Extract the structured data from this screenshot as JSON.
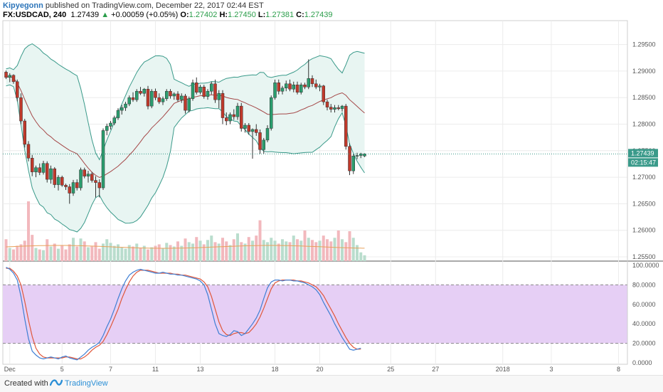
{
  "header": {
    "author": "Kipyegonn",
    "published": "published on TradingView.com, December 22, 2017 02:44 EST",
    "symbol": "FX:USDCAD, 240",
    "last": "1.27439",
    "change": "+0.00059 (+0.05%)",
    "o_label": "O:",
    "o": "1.27402",
    "h_label": "H:",
    "h": "1.27450",
    "l_label": "L:",
    "l": "1.27381",
    "c_label": "C:",
    "c": "1.27439"
  },
  "footer": {
    "created_with": "Created with",
    "brand": "TradingView"
  },
  "colors": {
    "up": "#2a9d6e",
    "down": "#c0392b",
    "band": "#3a9a8a",
    "band_fill": "#e8f5f2",
    "basis": "#a54848",
    "stoch_k": "#3f7fd4",
    "stoch_d": "#e0573a",
    "stoch_zone": "#e6cff5",
    "vol_up": "#b9ddcd",
    "vol_down": "#f2b8bd",
    "price_tag": "#3a9a8a"
  },
  "chart_data": [
    {
      "type": "candlestick",
      "title": "FX:USDCAD, 240",
      "overlays": [
        "Bollinger Bands",
        "Volume"
      ],
      "ylim": [
        1.2542,
        1.2995
      ],
      "y_ticks": [
        "1.29500",
        "1.29000",
        "1.28500",
        "1.28000",
        "1.27500",
        "1.27000",
        "1.26500",
        "1.26000",
        "1.25500"
      ],
      "y_tick_values": [
        1.295,
        1.29,
        1.285,
        1.28,
        1.275,
        1.27,
        1.265,
        1.26,
        1.255
      ],
      "last_price_label": "1.27439",
      "last_price": 1.27439,
      "countdown_label": "02:15:47",
      "x_ticks": [
        "Dec",
        "5",
        "7",
        "11",
        "13",
        "18",
        "20",
        "25",
        "27",
        "2018",
        "3",
        "8"
      ],
      "x_tick_bars": [
        1,
        15,
        28,
        40,
        52,
        72,
        84,
        103,
        115,
        133,
        146,
        164
      ],
      "candles": [
        [
          1.2898,
          1.2901,
          1.2885,
          1.2888
        ],
        [
          1.2888,
          1.2896,
          1.2879,
          1.2892
        ],
        [
          1.2892,
          1.2894,
          1.2876,
          1.288
        ],
        [
          1.288,
          1.2884,
          1.2843,
          1.285
        ],
        [
          1.285,
          1.2858,
          1.28,
          1.2806
        ],
        [
          1.2806,
          1.281,
          1.2756,
          1.2762
        ],
        [
          1.2762,
          1.2768,
          1.273,
          1.2736
        ],
        [
          1.2736,
          1.2742,
          1.2702,
          1.271
        ],
        [
          1.271,
          1.2722,
          1.27,
          1.2718
        ],
        [
          1.2718,
          1.2726,
          1.2704,
          1.2709
        ],
        [
          1.2709,
          1.2731,
          1.2705,
          1.2726
        ],
        [
          1.2726,
          1.273,
          1.269,
          1.2696
        ],
        [
          1.2696,
          1.2722,
          1.2688,
          1.2716
        ],
        [
          1.2716,
          1.2719,
          1.268,
          1.2686
        ],
        [
          1.2686,
          1.2704,
          1.2675,
          1.27
        ],
        [
          1.27,
          1.2703,
          1.2682,
          1.2685
        ],
        [
          1.2685,
          1.2688,
          1.2676,
          1.2682
        ],
        [
          1.2682,
          1.2687,
          1.265,
          1.267
        ],
        [
          1.267,
          1.2695,
          1.2665,
          1.269
        ],
        [
          1.269,
          1.2696,
          1.2675,
          1.268
        ],
        [
          1.268,
          1.2718,
          1.2675,
          1.2714
        ],
        [
          1.2714,
          1.2718,
          1.2698,
          1.2702
        ],
        [
          1.2702,
          1.2712,
          1.269,
          1.2706
        ],
        [
          1.2706,
          1.271,
          1.269,
          1.2694
        ],
        [
          1.2694,
          1.2702,
          1.2662,
          1.269
        ],
        [
          1.269,
          1.2696,
          1.2662,
          1.268
        ],
        [
          1.268,
          1.2792,
          1.2676,
          1.2788
        ],
        [
          1.2788,
          1.2801,
          1.2779,
          1.2796
        ],
        [
          1.2796,
          1.2806,
          1.279,
          1.2802
        ],
        [
          1.2802,
          1.2816,
          1.2798,
          1.2812
        ],
        [
          1.2812,
          1.283,
          1.2808,
          1.2826
        ],
        [
          1.2826,
          1.2836,
          1.2818,
          1.2831
        ],
        [
          1.2831,
          1.2842,
          1.2825,
          1.2838
        ],
        [
          1.2838,
          1.2854,
          1.2834,
          1.285
        ],
        [
          1.285,
          1.286,
          1.2842,
          1.2846
        ],
        [
          1.2846,
          1.2866,
          1.2842,
          1.2862
        ],
        [
          1.2862,
          1.287,
          1.2855,
          1.2858
        ],
        [
          1.2858,
          1.2868,
          1.2852,
          1.2866
        ],
        [
          1.2866,
          1.2872,
          1.2828,
          1.2834
        ],
        [
          1.2834,
          1.2866,
          1.283,
          1.2862
        ],
        [
          1.2862,
          1.2867,
          1.2845,
          1.285
        ],
        [
          1.285,
          1.2858,
          1.2838,
          1.2842
        ],
        [
          1.2842,
          1.2852,
          1.2836,
          1.2848
        ],
        [
          1.2848,
          1.2866,
          1.2844,
          1.2862
        ],
        [
          1.2862,
          1.2866,
          1.2848,
          1.2853
        ],
        [
          1.2853,
          1.286,
          1.2846,
          1.2857
        ],
        [
          1.2857,
          1.2862,
          1.2842,
          1.2846
        ],
        [
          1.2846,
          1.2858,
          1.284,
          1.2853
        ],
        [
          1.2853,
          1.2857,
          1.282,
          1.2826
        ],
        [
          1.2826,
          1.2852,
          1.2822,
          1.2848
        ],
        [
          1.2848,
          1.2884,
          1.2844,
          1.2878
        ],
        [
          1.2878,
          1.2888,
          1.2856,
          1.286
        ],
        [
          1.286,
          1.2874,
          1.2856,
          1.287
        ],
        [
          1.287,
          1.2874,
          1.2848,
          1.2852
        ],
        [
          1.2852,
          1.2866,
          1.2846,
          1.2862
        ],
        [
          1.2862,
          1.288,
          1.2856,
          1.2876
        ],
        [
          1.2876,
          1.2884,
          1.284,
          1.2846
        ],
        [
          1.2846,
          1.2864,
          1.283,
          1.2858
        ],
        [
          1.2858,
          1.2864,
          1.28,
          1.2812
        ],
        [
          1.2812,
          1.2822,
          1.2798,
          1.2806
        ],
        [
          1.2806,
          1.2822,
          1.28,
          1.2818
        ],
        [
          1.2818,
          1.2828,
          1.2808,
          1.2814
        ],
        [
          1.2814,
          1.284,
          1.2808,
          1.2834
        ],
        [
          1.2834,
          1.284,
          1.2786,
          1.2792
        ],
        [
          1.2792,
          1.2802,
          1.2784,
          1.2798
        ],
        [
          1.2798,
          1.2802,
          1.278,
          1.2786
        ],
        [
          1.2786,
          1.2792,
          1.2735,
          1.279
        ],
        [
          1.279,
          1.28,
          1.2778,
          1.2784
        ],
        [
          1.2784,
          1.279,
          1.2744,
          1.2752
        ],
        [
          1.2752,
          1.2774,
          1.2744,
          1.277
        ],
        [
          1.277,
          1.2798,
          1.2766,
          1.2792
        ],
        [
          1.2792,
          1.2854,
          1.2788,
          1.285
        ],
        [
          1.285,
          1.2884,
          1.2846,
          1.2878
        ],
        [
          1.2878,
          1.2884,
          1.2856,
          1.2862
        ],
        [
          1.2862,
          1.2872,
          1.2856,
          1.2868
        ],
        [
          1.2868,
          1.2882,
          1.2862,
          1.2876
        ],
        [
          1.2876,
          1.2884,
          1.2862,
          1.2866
        ],
        [
          1.2866,
          1.288,
          1.286,
          1.2874
        ],
        [
          1.2874,
          1.288,
          1.2856,
          1.286
        ],
        [
          1.286,
          1.2878,
          1.2856,
          1.2874
        ],
        [
          1.2874,
          1.2878,
          1.2866,
          1.287
        ],
        [
          1.287,
          1.2922,
          1.2866,
          1.2886
        ],
        [
          1.2886,
          1.2892,
          1.287,
          1.2876
        ],
        [
          1.2876,
          1.2884,
          1.2866,
          1.287
        ],
        [
          1.287,
          1.2876,
          1.2862,
          1.2872
        ],
        [
          1.2872,
          1.2874,
          1.2836,
          1.2842
        ],
        [
          1.2842,
          1.2846,
          1.2826,
          1.2832
        ],
        [
          1.2832,
          1.2838,
          1.2822,
          1.2828
        ],
        [
          1.2828,
          1.2836,
          1.2822,
          1.2831
        ],
        [
          1.2831,
          1.2836,
          1.2826,
          1.2829
        ],
        [
          1.2829,
          1.2836,
          1.2824,
          1.2834
        ],
        [
          1.2834,
          1.2838,
          1.2752,
          1.2758
        ],
        [
          1.2758,
          1.2764,
          1.2704,
          1.2712
        ],
        [
          1.2712,
          1.2744,
          1.2706,
          1.274
        ],
        [
          1.274,
          1.2746,
          1.2734,
          1.2741
        ],
        [
          1.2741,
          1.2746,
          1.2736,
          1.2744
        ],
        [
          1.274,
          1.2745,
          1.2738,
          1.2744
        ]
      ],
      "volumes": [
        300,
        180,
        160,
        210,
        230,
        280,
        820,
        360,
        180,
        160,
        150,
        300,
        200,
        240,
        170,
        210,
        160,
        230,
        320,
        200,
        310,
        270,
        190,
        200,
        260,
        170,
        240,
        300,
        250,
        210,
        230,
        190,
        170,
        220,
        200,
        240,
        180,
        210,
        160,
        190,
        210,
        230,
        180,
        250,
        220,
        200,
        270,
        210,
        310,
        260,
        240,
        330,
        280,
        230,
        290,
        350,
        260,
        240,
        320,
        270,
        220,
        300,
        380,
        260,
        240,
        330,
        280,
        350,
        560,
        290,
        260,
        320,
        280,
        240,
        300,
        270,
        260,
        350,
        300,
        280,
        420,
        320,
        290,
        260,
        280,
        350,
        300,
        270,
        320,
        420,
        300,
        260,
        410,
        320,
        220,
        120,
        80
      ]
    },
    {
      "type": "line",
      "title": "Stochastic",
      "ylim": [
        0,
        100
      ],
      "y_ticks": [
        "100.0000",
        "80.0000",
        "60.0000",
        "40.0000",
        "20.0000",
        "0.0000"
      ],
      "y_tick_values": [
        100,
        80,
        60,
        40,
        20,
        0
      ],
      "band": [
        20,
        80
      ],
      "series": [
        {
          "key": "k",
          "values": [
            98,
            96,
            92,
            85,
            68,
            45,
            25,
            12,
            8,
            5,
            4,
            5,
            6,
            5,
            4,
            6,
            7,
            5,
            4,
            3,
            6,
            9,
            13,
            16,
            18,
            21,
            28,
            37,
            45,
            55,
            66,
            76,
            84,
            90,
            93,
            95,
            96,
            95,
            94,
            93,
            92,
            92,
            93,
            92,
            91,
            91,
            90,
            90,
            89,
            88,
            87,
            86,
            84,
            80,
            70,
            55,
            40,
            30,
            28,
            27,
            29,
            33,
            32,
            28,
            30,
            35,
            40,
            46,
            54,
            66,
            77,
            83,
            85,
            85,
            84,
            85,
            85,
            84,
            84,
            83,
            82,
            80,
            78,
            75,
            70,
            62,
            55,
            48,
            40,
            33,
            26,
            20,
            14,
            13,
            14,
            15
          ]
        },
        {
          "key": "d",
          "values": [
            97,
            97,
            94,
            89,
            80,
            63,
            44,
            27,
            15,
            9,
            6,
            5,
            5,
            5,
            5,
            5,
            6,
            6,
            5,
            4,
            4,
            6,
            9,
            13,
            16,
            18,
            22,
            29,
            37,
            46,
            55,
            66,
            75,
            83,
            89,
            93,
            95,
            95,
            95,
            94,
            93,
            92,
            92,
            92,
            92,
            91,
            91,
            90,
            90,
            89,
            88,
            87,
            86,
            83,
            78,
            68,
            55,
            42,
            33,
            29,
            28,
            30,
            31,
            31,
            30,
            31,
            35,
            40,
            47,
            56,
            66,
            76,
            82,
            84,
            85,
            85,
            85,
            85,
            84,
            84,
            83,
            82,
            80,
            78,
            74,
            69,
            62,
            55,
            48,
            40,
            33,
            26,
            20,
            16,
            14,
            14
          ]
        }
      ]
    }
  ]
}
